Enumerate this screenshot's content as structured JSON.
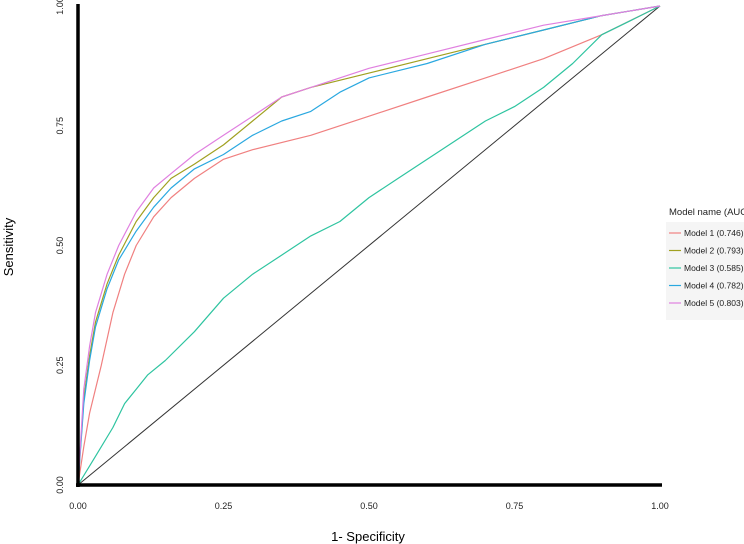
{
  "chart_data": {
    "type": "line",
    "title": "",
    "xlabel": "1- Specificity",
    "ylabel": "Sensitivity",
    "xlim": [
      0,
      1
    ],
    "ylim": [
      0,
      1
    ],
    "xticks": [
      "0.00",
      "0.25",
      "0.50",
      "0.75",
      "1.00"
    ],
    "yticks": [
      "0.00",
      "0.25",
      "0.50",
      "0.75",
      "1.00"
    ],
    "grid": false,
    "legend_title": "Model name (AUC)",
    "legend_position": "right",
    "reference_line": {
      "x": [
        0,
        1
      ],
      "y": [
        0,
        1
      ],
      "color": "#333333"
    },
    "series": [
      {
        "name": "Model 1",
        "auc": "(0.746)",
        "color": "#f08080",
        "x": [
          0,
          0.01,
          0.02,
          0.04,
          0.06,
          0.08,
          0.1,
          0.13,
          0.16,
          0.2,
          0.25,
          0.3,
          0.4,
          0.5,
          0.6,
          0.7,
          0.8,
          0.9,
          1
        ],
        "y": [
          0,
          0.08,
          0.15,
          0.25,
          0.36,
          0.44,
          0.5,
          0.56,
          0.6,
          0.64,
          0.68,
          0.7,
          0.73,
          0.77,
          0.81,
          0.85,
          0.89,
          0.94,
          1
        ]
      },
      {
        "name": "Model 2",
        "auc": "(0.793)",
        "color": "#a0a020",
        "x": [
          0,
          0.01,
          0.02,
          0.03,
          0.05,
          0.07,
          0.1,
          0.13,
          0.16,
          0.2,
          0.25,
          0.3,
          0.35,
          0.4,
          0.5,
          0.6,
          0.7,
          0.8,
          0.9,
          0.95,
          1
        ],
        "y": [
          0,
          0.18,
          0.27,
          0.34,
          0.42,
          0.48,
          0.55,
          0.6,
          0.64,
          0.67,
          0.71,
          0.76,
          0.81,
          0.83,
          0.86,
          0.89,
          0.92,
          0.95,
          0.98,
          0.99,
          1
        ]
      },
      {
        "name": "Model 3",
        "auc": "(0.585)",
        "color": "#2ec4a0",
        "x": [
          0,
          0.03,
          0.06,
          0.08,
          0.1,
          0.12,
          0.15,
          0.2,
          0.25,
          0.3,
          0.35,
          0.4,
          0.45,
          0.5,
          0.55,
          0.6,
          0.65,
          0.7,
          0.75,
          0.8,
          0.85,
          0.9,
          0.95,
          1
        ],
        "y": [
          0,
          0.06,
          0.12,
          0.17,
          0.2,
          0.23,
          0.26,
          0.32,
          0.39,
          0.44,
          0.48,
          0.52,
          0.55,
          0.6,
          0.64,
          0.68,
          0.72,
          0.76,
          0.79,
          0.83,
          0.88,
          0.94,
          0.97,
          1
        ]
      },
      {
        "name": "Model 4",
        "auc": "(0.782)",
        "color": "#2aa8e0",
        "x": [
          0,
          0.01,
          0.02,
          0.03,
          0.05,
          0.07,
          0.1,
          0.13,
          0.16,
          0.2,
          0.25,
          0.3,
          0.35,
          0.4,
          0.45,
          0.5,
          0.6,
          0.7,
          0.8,
          0.9,
          0.95,
          1
        ],
        "y": [
          0,
          0.17,
          0.26,
          0.33,
          0.41,
          0.47,
          0.53,
          0.58,
          0.62,
          0.66,
          0.69,
          0.73,
          0.76,
          0.78,
          0.82,
          0.85,
          0.88,
          0.92,
          0.95,
          0.98,
          0.99,
          1
        ]
      },
      {
        "name": "Model 5",
        "auc": "(0.803)",
        "color": "#e080e0",
        "x": [
          0,
          0.01,
          0.02,
          0.03,
          0.05,
          0.07,
          0.1,
          0.13,
          0.16,
          0.2,
          0.25,
          0.3,
          0.35,
          0.4,
          0.5,
          0.6,
          0.7,
          0.8,
          0.9,
          0.95,
          1
        ],
        "y": [
          0,
          0.2,
          0.29,
          0.36,
          0.44,
          0.5,
          0.57,
          0.62,
          0.65,
          0.69,
          0.73,
          0.77,
          0.81,
          0.83,
          0.87,
          0.9,
          0.93,
          0.96,
          0.98,
          0.99,
          1
        ]
      }
    ]
  }
}
